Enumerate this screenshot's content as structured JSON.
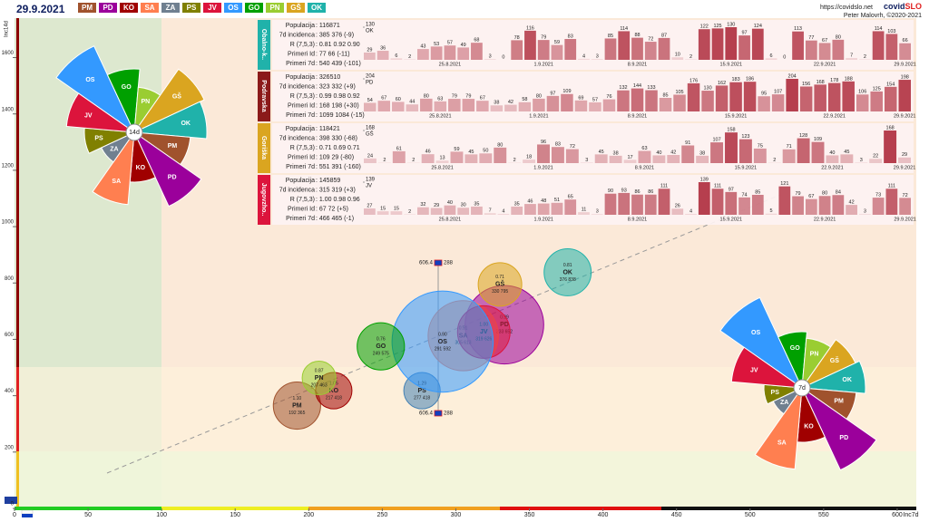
{
  "header": {
    "date": "29.9.2021",
    "url": "https://covidslo.net",
    "brand": [
      "covid",
      "SLO"
    ],
    "author": "Peter Malovrh, ©2020-2021",
    "legend": [
      {
        "name": "PM",
        "color": "#a0522d"
      },
      {
        "name": "PD",
        "color": "#9b009b"
      },
      {
        "name": "KO",
        "color": "#a00000"
      },
      {
        "name": "SA",
        "color": "#ff7f50"
      },
      {
        "name": "ZA",
        "color": "#708090"
      },
      {
        "name": "PS",
        "color": "#808000"
      },
      {
        "name": "JV",
        "color": "#dc143c"
      },
      {
        "name": "OS",
        "color": "#3399ff"
      },
      {
        "name": "GO",
        "color": "#00a000"
      },
      {
        "name": "PN",
        "color": "#9acd32"
      },
      {
        "name": "GŠ",
        "color": "#daa520"
      },
      {
        "name": "OK",
        "color": "#20b2aa"
      }
    ]
  },
  "chart_data": [
    {
      "type": "bubble",
      "x_label": "Inc7d",
      "y_label": "Inc14d",
      "categories": [
        "PM",
        "PD",
        "KO",
        "SA",
        "PS",
        "JV",
        "OS",
        "GO",
        "PN",
        "GŠ",
        "OK"
      ],
      "x": [
        192,
        333,
        217,
        305,
        277,
        319,
        291,
        249,
        207,
        330,
        376
      ],
      "values": [
        365,
        652,
        418,
        613,
        418,
        626,
        592,
        575,
        463,
        795,
        838
      ],
      "sizes": [
        118,
        326,
        70,
        260,
        70,
        146,
        540,
        118,
        60,
        100,
        117
      ],
      "colors": [
        "#a0522d",
        "#9b009b",
        "#a00000",
        "#ff7f50",
        "#4682b4",
        "#dc143c",
        "#3399ff",
        "#00a000",
        "#9acd32",
        "#daa520",
        "#20b2aa"
      ],
      "r_labels": [
        "1.10",
        "0.99",
        "1.05",
        "0.91",
        "1.29",
        "1.00",
        "0.90",
        "0.76",
        "0.87",
        "0.71",
        "0.81"
      ],
      "point_labels": [
        "192 365",
        "333 652",
        "217 418",
        "305 613",
        "277 418",
        "319 626",
        "291 592",
        "249 575",
        "207 463",
        "330 795",
        "376 838"
      ],
      "national": {
        "x": 288.0,
        "y": 606.4
      },
      "xlim": [
        0,
        613
      ],
      "xticks": [
        0,
        50,
        100,
        150,
        200,
        250,
        300,
        350,
        400,
        450,
        500,
        550,
        600
      ],
      "ylim": [
        0,
        1740
      ],
      "yticks": [
        0,
        200,
        400,
        600,
        800,
        1000,
        1200,
        1400,
        1600
      ]
    },
    {
      "type": "polar",
      "center_label": "14d",
      "categories": [
        "OS",
        "GO",
        "PN",
        "GŠ",
        "OK",
        "PM",
        "PD",
        "KO",
        "SA",
        "ZA",
        "PS",
        "JV"
      ],
      "values": [
        105,
        70,
        50,
        85,
        80,
        62,
        90,
        55,
        80,
        40,
        55,
        75
      ],
      "colors": [
        "#3399ff",
        "#00a000",
        "#9acd32",
        "#daa520",
        "#20b2aa",
        "#a0522d",
        "#9b009b",
        "#a00000",
        "#ff7f50",
        "#708090",
        "#808000",
        "#dc143c"
      ],
      "rlim": [
        0,
        110
      ]
    },
    {
      "type": "polar",
      "center_label": "7d",
      "categories": [
        "OS",
        "GO",
        "PN",
        "GŠ",
        "OK",
        "PM",
        "PD",
        "KO",
        "SA",
        "ZA",
        "PS",
        "JV"
      ],
      "values": [
        110,
        62,
        55,
        65,
        70,
        60,
        100,
        60,
        90,
        35,
        42,
        78
      ],
      "colors": [
        "#3399ff",
        "#00a000",
        "#9acd32",
        "#daa520",
        "#20b2aa",
        "#a0522d",
        "#9b009b",
        "#a00000",
        "#ff7f50",
        "#708090",
        "#808000",
        "#dc143c"
      ],
      "rlim": [
        0,
        110
      ]
    },
    {
      "type": "bar",
      "title": "Obalno-k..",
      "region_code": "OK",
      "color": "#20b2aa",
      "stats": [
        [
          "Populacija",
          ": 116871"
        ],
        [
          "7d incidenca",
          ": 385 376 (-9)"
        ],
        [
          "R (7,5,3)",
          ": 0.81 0.92 0.90"
        ],
        [
          "Primeri Id",
          ": 77 66 (-11)"
        ],
        [
          "Primeri 7d",
          ": 540 439 (-101)"
        ]
      ],
      "categories": [
        null,
        null,
        null,
        null,
        null,
        null,
        "25.8.2021",
        null,
        null,
        null,
        null,
        null,
        null,
        "1.9.2021",
        null,
        null,
        null,
        null,
        null,
        null,
        "8.9.2021",
        null,
        null,
        null,
        null,
        null,
        null,
        "15.9.2021",
        null,
        null,
        null,
        null,
        null,
        null,
        "22.9.2021",
        null,
        null,
        null,
        null,
        null,
        "29.9.2021"
      ],
      "values": [
        29,
        36,
        6,
        2,
        43,
        53,
        57,
        49,
        68,
        3,
        0,
        78,
        116,
        79,
        59,
        83,
        4,
        3,
        85,
        114,
        88,
        72,
        87,
        10,
        2,
        122,
        125,
        130,
        97,
        124,
        6,
        0,
        113,
        77,
        67,
        80,
        7,
        2,
        114,
        103,
        66
      ],
      "ylim": [
        0,
        130
      ],
      "yticks": [
        130
      ]
    },
    {
      "type": "bar",
      "title": "Podravska",
      "region_code": "PD",
      "color": "#8b1a1a",
      "stats": [
        [
          "Populacija",
          ": 326510"
        ],
        [
          "7d incidenca",
          ": 323 332 (+9)"
        ],
        [
          "R (7,5,3)",
          ": 0.99 0.98 0.92"
        ],
        [
          "Primeri Id",
          ": 168 198 (+30)"
        ],
        [
          "Primeri 7d",
          ": 1099 1084 (-15)"
        ]
      ],
      "categories": [
        null,
        null,
        null,
        null,
        null,
        "25.8.2021",
        null,
        null,
        null,
        null,
        null,
        null,
        "1.9.2021",
        null,
        null,
        null,
        null,
        null,
        null,
        "8.9.2021",
        null,
        null,
        null,
        null,
        null,
        null,
        "15.9.2021",
        null,
        null,
        null,
        null,
        null,
        null,
        "22.9.2021",
        null,
        null,
        null,
        null,
        "29.9.2021"
      ],
      "values": [
        54,
        67,
        60,
        44,
        80,
        63,
        79,
        79,
        67,
        38,
        42,
        58,
        80,
        97,
        109,
        69,
        57,
        76,
        132,
        144,
        133,
        85,
        105,
        176,
        130,
        162,
        183,
        186,
        95,
        107,
        204,
        156,
        168,
        178,
        188,
        106,
        125,
        154,
        198
      ],
      "ylim": [
        0,
        204
      ],
      "yticks": [
        204
      ]
    },
    {
      "type": "bar",
      "title": "Goriška",
      "region_code": "GŠ",
      "color": "#daa520",
      "stats": [
        [
          "Populacija",
          ": 118421"
        ],
        [
          "7d incidenca",
          ": 398 330 (-68)"
        ],
        [
          "R (7,5,3)",
          ": 0.71 0.69 0.71"
        ],
        [
          "Primeri Id",
          ": 109 29 (-80)"
        ],
        [
          "Primeri 7d",
          ": 551 391 (-160)"
        ]
      ],
      "categories": [
        null,
        null,
        null,
        null,
        null,
        "25.8.2021",
        null,
        null,
        null,
        null,
        null,
        null,
        "1.9.2021",
        null,
        null,
        null,
        null,
        null,
        null,
        "8.9.2021",
        null,
        null,
        null,
        null,
        null,
        null,
        "15.9.2021",
        null,
        null,
        null,
        null,
        null,
        "22.9.2021",
        null,
        null,
        null,
        null,
        "29.9.2021"
      ],
      "values": [
        24,
        2,
        61,
        2,
        46,
        13,
        59,
        45,
        50,
        80,
        2,
        18,
        96,
        83,
        72,
        3,
        45,
        38,
        17,
        63,
        40,
        42,
        91,
        38,
        107,
        158,
        123,
        75,
        2,
        71,
        128,
        109,
        40,
        45,
        3,
        22,
        168,
        29
      ],
      "ylim": [
        0,
        168
      ],
      "yticks": [
        168
      ]
    },
    {
      "type": "bar",
      "title": "Jugovzho..",
      "region_code": "JV",
      "color": "#dc143c",
      "stats": [
        [
          "Populacija",
          ": 145859"
        ],
        [
          "7d incidenca",
          ": 315 319 (+3)"
        ],
        [
          "R (7,5,3)",
          ": 1.00 0.98 0.96"
        ],
        [
          "Primeri Id",
          ": 67 72 (+5)"
        ],
        [
          "Primeri 7d",
          ": 466 465 (-1)"
        ]
      ],
      "categories": [
        null,
        null,
        null,
        null,
        null,
        null,
        "25.8.2021",
        null,
        null,
        null,
        null,
        null,
        null,
        "1.9.2021",
        null,
        null,
        null,
        null,
        null,
        null,
        "8.9.2021",
        null,
        null,
        null,
        null,
        null,
        null,
        "15.9.2021",
        null,
        null,
        null,
        null,
        null,
        null,
        "22.9.2021",
        null,
        null,
        null,
        null,
        null,
        "29.9.2021"
      ],
      "values": [
        27,
        15,
        15,
        2,
        32,
        29,
        40,
        30,
        35,
        7,
        4,
        35,
        46,
        48,
        51,
        65,
        11,
        3,
        90,
        93,
        86,
        86,
        111,
        26,
        4,
        139,
        111,
        97,
        74,
        85,
        5,
        121,
        79,
        67,
        80,
        84,
        42,
        3,
        73,
        111,
        72
      ],
      "ylim": [
        0,
        139
      ],
      "yticks": [
        139
      ]
    }
  ]
}
